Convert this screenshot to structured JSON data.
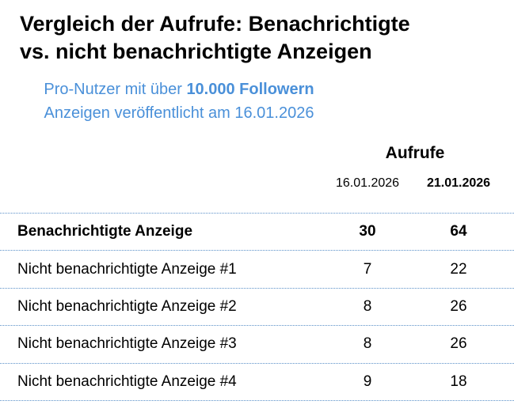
{
  "title": {
    "line1": "Vergleich der Aufrufe: Benachrichtigte",
    "line2": "vs. nicht benachrichtigte Anzeigen"
  },
  "subtitle": {
    "line1_regular": "Pro-Nutzer mit über ",
    "line1_bold": "10.000 Followern",
    "line2": "Anzeigen veröffentlicht am 16.01.2026"
  },
  "table": {
    "group_header": "Aufrufe",
    "columns": [
      "16.01.2026",
      "21.01.2026"
    ],
    "rows": [
      {
        "label": "Benachrichtigte Anzeige",
        "values": [
          "30",
          "64"
        ]
      },
      {
        "label": "Nicht benachrichtigte Anzeige #1",
        "values": [
          "7",
          "22"
        ]
      },
      {
        "label": "Nicht benachrichtigte Anzeige #2",
        "values": [
          "8",
          "26"
        ]
      },
      {
        "label": "Nicht benachrichtigte Anzeige #3",
        "values": [
          "8",
          "26"
        ]
      },
      {
        "label": "Nicht benachrichtigte Anzeige #4",
        "values": [
          "9",
          "18"
        ]
      }
    ]
  },
  "colors": {
    "accent_blue": "#4a90d9",
    "divider_blue": "#5a90c8",
    "text_black": "#000000"
  }
}
